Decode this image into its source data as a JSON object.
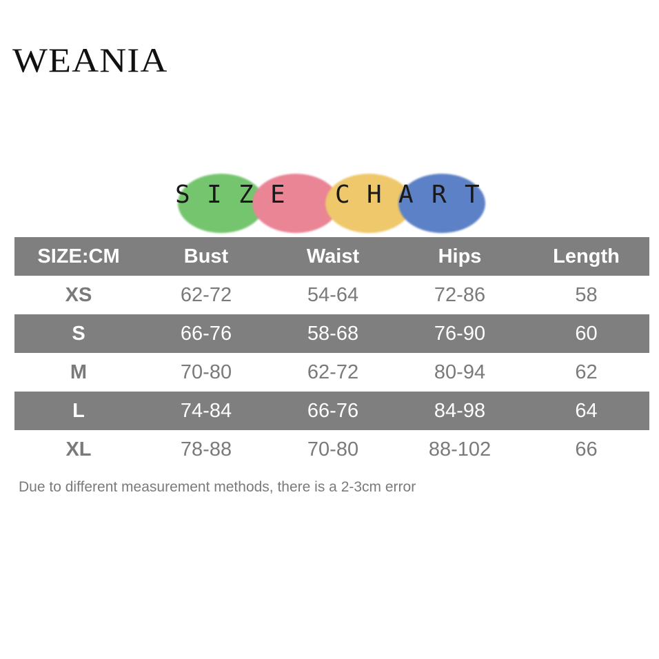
{
  "brand": "WEANIA",
  "banner": {
    "letters": [
      "S",
      "I",
      "Z",
      "E",
      "C",
      "H",
      "A",
      "R",
      "T"
    ],
    "colors": [
      "#75c56f",
      "#e98595",
      "#eec86a",
      "#5d81c6"
    ]
  },
  "table": {
    "headers": [
      "SIZE:CM",
      "Bust",
      "Waist",
      "Hips",
      "Length"
    ],
    "rows": [
      [
        "XS",
        "62-72",
        "54-64",
        "72-86",
        "58"
      ],
      [
        "S",
        "66-76",
        "58-68",
        "76-90",
        "60"
      ],
      [
        "M",
        "70-80",
        "62-72",
        "80-94",
        "62"
      ],
      [
        "L",
        "74-84",
        "66-76",
        "84-98",
        "64"
      ],
      [
        "XL",
        "78-88",
        "70-80",
        "88-102",
        "66"
      ]
    ],
    "colors": {
      "dark_row": "#7f7f7f",
      "light_text": "#7a7a7a",
      "dark_text": "#ffffff"
    }
  },
  "note": "Due to different measurement methods, there is a 2-3cm error"
}
